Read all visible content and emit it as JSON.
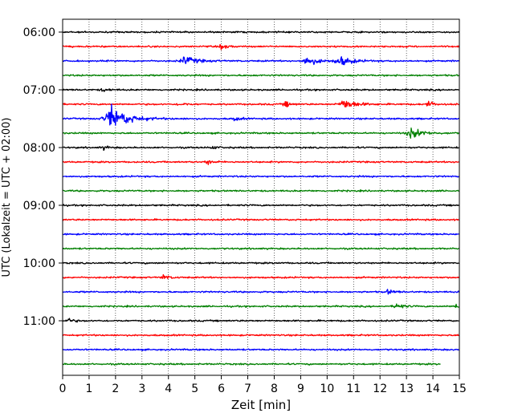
{
  "chart_data": {
    "type": "line",
    "title": "",
    "xlabel": "Zeit  [min]",
    "ylabel": "UTC (Lokalzeit = UTC + 02:00)",
    "xlim": [
      0,
      15
    ],
    "x_ticks": [
      "0",
      "1",
      "2",
      "3",
      "4",
      "5",
      "6",
      "7",
      "8",
      "9",
      "10",
      "11",
      "12",
      "13",
      "14",
      "15"
    ],
    "y_ticks": [
      {
        "label": "06:00",
        "row": 0
      },
      {
        "label": "07:00",
        "row": 4
      },
      {
        "label": "08:00",
        "row": 8
      },
      {
        "label": "09:00",
        "row": 12
      },
      {
        "label": "10:00",
        "row": 16
      },
      {
        "label": "11:00",
        "row": 20
      }
    ],
    "grid": "vertical dotted at each minute",
    "legend": "none",
    "row_colors": [
      "#000000",
      "#ff0000",
      "#0000ff",
      "#008000"
    ],
    "rows": [
      {
        "start": "06:00",
        "color": "#000000",
        "end_min": 15,
        "events": []
      },
      {
        "start": "06:15",
        "color": "#ff0000",
        "end_min": 15,
        "events": [
          {
            "t": 6.0,
            "amp": 1.3
          }
        ]
      },
      {
        "start": "06:30",
        "color": "#0000ff",
        "end_min": 15,
        "events": [
          {
            "t": 4.6,
            "amp": 2.2
          },
          {
            "t": 9.2,
            "amp": 2.3
          },
          {
            "t": 10.45,
            "amp": 2.5
          }
        ]
      },
      {
        "start": "06:45",
        "color": "#008000",
        "end_min": 15,
        "events": []
      },
      {
        "start": "07:00",
        "color": "#000000",
        "end_min": 15,
        "events": [
          {
            "t": 1.5,
            "amp": 0.9
          }
        ]
      },
      {
        "start": "07:15",
        "color": "#ff0000",
        "end_min": 15,
        "events": [
          {
            "t": 4.4,
            "amp": 0.9
          },
          {
            "t": 8.4,
            "amp": 1.5
          },
          {
            "t": 10.6,
            "amp": 2.8
          },
          {
            "t": 13.8,
            "amp": 1.6
          }
        ]
      },
      {
        "start": "07:30",
        "color": "#0000ff",
        "end_min": 15,
        "events": [
          {
            "t": 1.8,
            "amp": 6.5
          },
          {
            "t": 6.5,
            "amp": 1.0
          }
        ]
      },
      {
        "start": "07:45",
        "color": "#008000",
        "end_min": 15,
        "events": [
          {
            "t": 13.15,
            "amp": 2.6
          }
        ]
      },
      {
        "start": "08:00",
        "color": "#000000",
        "end_min": 15,
        "events": [
          {
            "t": 1.5,
            "amp": 1.0
          },
          {
            "t": 5.6,
            "amp": 0.9
          }
        ]
      },
      {
        "start": "08:15",
        "color": "#ff0000",
        "end_min": 15,
        "events": [
          {
            "t": 5.45,
            "amp": 1.2
          }
        ]
      },
      {
        "start": "08:30",
        "color": "#0000ff",
        "end_min": 15,
        "events": []
      },
      {
        "start": "08:45",
        "color": "#008000",
        "end_min": 15,
        "events": []
      },
      {
        "start": "09:00",
        "color": "#000000",
        "end_min": 15,
        "events": []
      },
      {
        "start": "09:15",
        "color": "#ff0000",
        "end_min": 15,
        "events": []
      },
      {
        "start": "09:30",
        "color": "#0000ff",
        "end_min": 15,
        "events": []
      },
      {
        "start": "09:45",
        "color": "#008000",
        "end_min": 15,
        "events": []
      },
      {
        "start": "10:00",
        "color": "#000000",
        "end_min": 15,
        "events": []
      },
      {
        "start": "10:15",
        "color": "#ff0000",
        "end_min": 15,
        "events": [
          {
            "t": 3.8,
            "amp": 1.3
          }
        ]
      },
      {
        "start": "10:30",
        "color": "#0000ff",
        "end_min": 15,
        "events": [
          {
            "t": 12.3,
            "amp": 1.3
          }
        ]
      },
      {
        "start": "10:45",
        "color": "#008000",
        "end_min": 15,
        "events": [
          {
            "t": 12.6,
            "amp": 2.0
          },
          {
            "t": 14.9,
            "amp": 1.8
          }
        ]
      },
      {
        "start": "11:00",
        "color": "#000000",
        "end_min": 15,
        "events": [
          {
            "t": 0.2,
            "amp": 1.1
          }
        ]
      },
      {
        "start": "11:15",
        "color": "#ff0000",
        "end_min": 15,
        "events": []
      },
      {
        "start": "11:30",
        "color": "#0000ff",
        "end_min": 15,
        "events": []
      },
      {
        "start": "11:45",
        "color": "#008000",
        "end_min": 14.3,
        "events": []
      }
    ]
  }
}
